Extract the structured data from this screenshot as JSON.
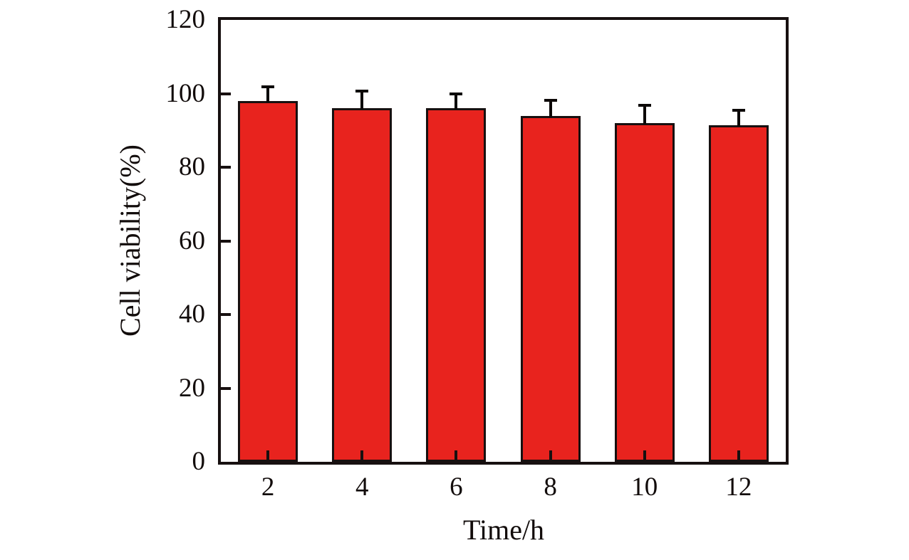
{
  "chart_data": {
    "type": "bar",
    "title": "",
    "xlabel": "Time/h",
    "ylabel": "Cell viability(%)",
    "categories": [
      "2",
      "4",
      "6",
      "8",
      "10",
      "12"
    ],
    "values": [
      98,
      96,
      96,
      94,
      92,
      91.5
    ],
    "errors": [
      4.3,
      5.0,
      4.2,
      4.5,
      5.2,
      4.3
    ],
    "error_direction": "plus-only",
    "ylim": [
      0,
      120
    ],
    "y_ticks": [
      "0",
      "20",
      "40",
      "60",
      "80",
      "100",
      "120"
    ],
    "y_tick_values": [
      0,
      20,
      40,
      60,
      80,
      100,
      120
    ],
    "grid": false,
    "legend": "none",
    "colors": {
      "bar_fill": "#e8231e",
      "bar_border": "#171010",
      "axis": "#171010",
      "error_bar": "#0c0807",
      "text": "#120c0b",
      "background": "#ffffff"
    }
  }
}
